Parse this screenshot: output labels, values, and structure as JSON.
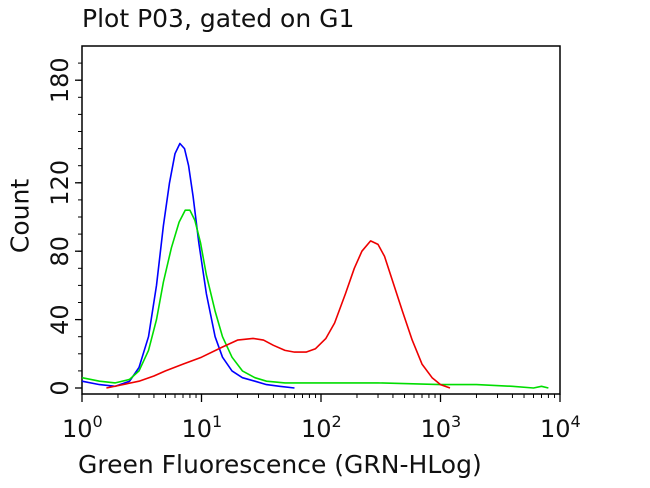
{
  "chart_data": {
    "type": "line",
    "title": "Plot P03, gated on G1",
    "xlabel": "Green Fluorescence (GRN-HLog)",
    "ylabel": "Count",
    "x_scale": "log",
    "xlim": [
      1,
      10000
    ],
    "ylim": [
      0,
      200
    ],
    "x_ticks": [
      {
        "base": "10",
        "exp": "0"
      },
      {
        "base": "10",
        "exp": "1"
      },
      {
        "base": "10",
        "exp": "2"
      },
      {
        "base": "10",
        "exp": "3"
      },
      {
        "base": "10",
        "exp": "4"
      }
    ],
    "y_ticks": [
      {
        "value": 0,
        "label": "0"
      },
      {
        "value": 40,
        "label": "40"
      },
      {
        "value": 80,
        "label": "80"
      },
      {
        "value": 120,
        "label": "120"
      },
      {
        "value": 180,
        "label": "180"
      }
    ],
    "grid": false,
    "legend": "none",
    "series": [
      {
        "color": "#0000ff",
        "points": [
          [
            1.0,
            4
          ],
          [
            1.4,
            2
          ],
          [
            1.9,
            1
          ],
          [
            2.5,
            4
          ],
          [
            3.0,
            12
          ],
          [
            3.6,
            30
          ],
          [
            4.2,
            60
          ],
          [
            4.8,
            95
          ],
          [
            5.4,
            120
          ],
          [
            6.0,
            137
          ],
          [
            6.6,
            143
          ],
          [
            7.2,
            140
          ],
          [
            7.8,
            130
          ],
          [
            8.5,
            112
          ],
          [
            9.5,
            85
          ],
          [
            11,
            55
          ],
          [
            13,
            30
          ],
          [
            15,
            18
          ],
          [
            18,
            10
          ],
          [
            22,
            6
          ],
          [
            28,
            4
          ],
          [
            35,
            2
          ],
          [
            45,
            1
          ],
          [
            60,
            0
          ]
        ]
      },
      {
        "color": "#00dd00",
        "points": [
          [
            1.0,
            6
          ],
          [
            1.4,
            4
          ],
          [
            1.9,
            3
          ],
          [
            2.5,
            5
          ],
          [
            3.0,
            10
          ],
          [
            3.6,
            22
          ],
          [
            4.2,
            40
          ],
          [
            4.8,
            62
          ],
          [
            5.6,
            82
          ],
          [
            6.5,
            97
          ],
          [
            7.3,
            104
          ],
          [
            8.0,
            104
          ],
          [
            8.8,
            98
          ],
          [
            9.8,
            85
          ],
          [
            11,
            66
          ],
          [
            13,
            45
          ],
          [
            15,
            30
          ],
          [
            18,
            18
          ],
          [
            22,
            10
          ],
          [
            28,
            6
          ],
          [
            35,
            4
          ],
          [
            50,
            3
          ],
          [
            100,
            3
          ],
          [
            300,
            3
          ],
          [
            1000,
            2
          ],
          [
            2000,
            2
          ],
          [
            4000,
            1
          ],
          [
            6000,
            0
          ],
          [
            7000,
            1
          ],
          [
            8000,
            0
          ]
        ]
      },
      {
        "color": "#ee0000",
        "points": [
          [
            1.6,
            0
          ],
          [
            2.2,
            2
          ],
          [
            3.0,
            4
          ],
          [
            4.0,
            7
          ],
          [
            5.0,
            10
          ],
          [
            7.0,
            14
          ],
          [
            10,
            18
          ],
          [
            15,
            24
          ],
          [
            20,
            28
          ],
          [
            27,
            29
          ],
          [
            33,
            28
          ],
          [
            40,
            25
          ],
          [
            50,
            22
          ],
          [
            60,
            21
          ],
          [
            75,
            21
          ],
          [
            90,
            23
          ],
          [
            110,
            29
          ],
          [
            130,
            38
          ],
          [
            160,
            55
          ],
          [
            190,
            70
          ],
          [
            220,
            80
          ],
          [
            260,
            86
          ],
          [
            300,
            84
          ],
          [
            340,
            77
          ],
          [
            400,
            62
          ],
          [
            480,
            45
          ],
          [
            580,
            28
          ],
          [
            700,
            14
          ],
          [
            850,
            6
          ],
          [
            1000,
            2
          ],
          [
            1200,
            0
          ]
        ]
      }
    ]
  }
}
